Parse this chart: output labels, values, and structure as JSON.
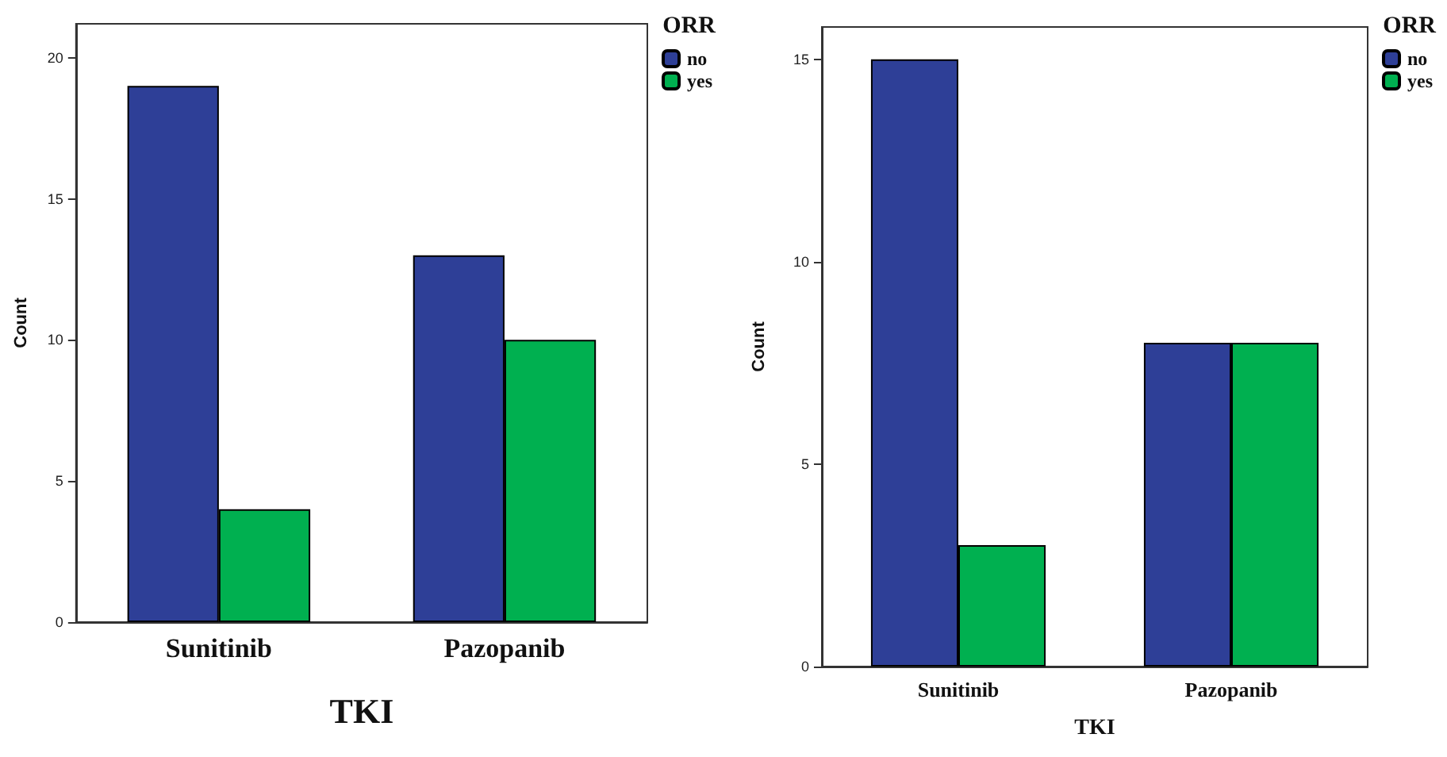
{
  "chart_data": [
    {
      "type": "bar",
      "categories": [
        "Sunitinib",
        "Pazopanib"
      ],
      "xlabel": "TKI",
      "ylabel": "Count",
      "legend_title": "ORR",
      "legend": "right",
      "ylim": [
        0,
        21.2
      ],
      "yticks": [
        0,
        5,
        10,
        15,
        20
      ],
      "grid": false,
      "series": [
        {
          "name": "no",
          "color": "#2e3f97",
          "values": [
            19,
            13
          ]
        },
        {
          "name": "yes",
          "color": "#00b050",
          "values": [
            4,
            10
          ]
        }
      ]
    },
    {
      "type": "bar",
      "categories": [
        "Sunitinib",
        "Pazopanib"
      ],
      "xlabel": "TKI",
      "ylabel": "Count",
      "legend_title": "ORR",
      "legend": "right",
      "ylim": [
        0,
        15.8
      ],
      "yticks": [
        0,
        5,
        10,
        15
      ],
      "grid": false,
      "series": [
        {
          "name": "no",
          "color": "#2e3f97",
          "values": [
            15,
            8
          ]
        },
        {
          "name": "yes",
          "color": "#00b050",
          "values": [
            3,
            8
          ]
        }
      ]
    }
  ]
}
